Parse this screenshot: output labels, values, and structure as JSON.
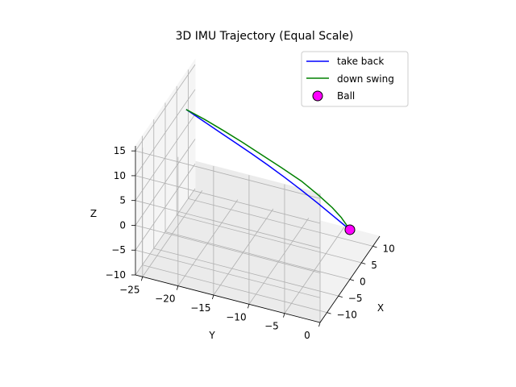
{
  "chart_data": {
    "type": "line3d",
    "title": "3D IMU Trajectory (Equal Scale)",
    "xlabel": "X",
    "ylabel": "Y",
    "zlabel": "Z",
    "xlim": [
      -13,
      13
    ],
    "ylim": [
      -26,
      0
    ],
    "zlim": [
      -10,
      16
    ],
    "x_ticks": [
      "−10",
      "−5",
      "0",
      "5",
      "10"
    ],
    "x_tick_values": [
      -10,
      -5,
      0,
      5,
      10
    ],
    "y_ticks": [
      "−25",
      "−20",
      "−15",
      "−10",
      "−5",
      "0"
    ],
    "y_tick_values": [
      -25,
      -20,
      -15,
      -10,
      -5,
      0
    ],
    "z_ticks": [
      "−10",
      "−5",
      "0",
      "5",
      "10",
      "15"
    ],
    "z_tick_values": [
      -10,
      -5,
      0,
      5,
      10,
      15
    ],
    "series": [
      {
        "name": "take back",
        "color": "#0000ff",
        "points": [
          [
            0,
            0,
            0
          ],
          [
            0.6,
            -2.5,
            1.4
          ],
          [
            1.2,
            -5,
            2.8
          ],
          [
            1.8,
            -7.5,
            4.1
          ],
          [
            2.4,
            -10,
            5.3
          ],
          [
            3.0,
            -12.5,
            6.4
          ],
          [
            3.6,
            -15,
            7.4
          ],
          [
            4.2,
            -17.5,
            8.3
          ],
          [
            4.8,
            -20,
            9.2
          ],
          [
            5.4,
            -22.5,
            10.1
          ],
          [
            6.0,
            -25,
            11.0
          ]
        ]
      },
      {
        "name": "down swing",
        "color": "#008000",
        "points": [
          [
            6.0,
            -25,
            11.0
          ],
          [
            4.8,
            -22,
            10.9
          ],
          [
            3.6,
            -19,
            10.6
          ],
          [
            2.6,
            -16,
            10.0
          ],
          [
            1.7,
            -13,
            9.2
          ],
          [
            1.0,
            -10,
            8.2
          ],
          [
            0.5,
            -7,
            6.9
          ],
          [
            0.2,
            -4.5,
            5.2
          ],
          [
            0.05,
            -2.5,
            3.5
          ],
          [
            0.0,
            -1.2,
            2.0
          ],
          [
            0.0,
            0,
            0
          ]
        ]
      }
    ],
    "ball": {
      "name": "Ball",
      "color": "#ff00ff",
      "edge_color": "#000000",
      "point": [
        0,
        0,
        0
      ]
    },
    "grid": true,
    "legend_position": "top-right"
  }
}
